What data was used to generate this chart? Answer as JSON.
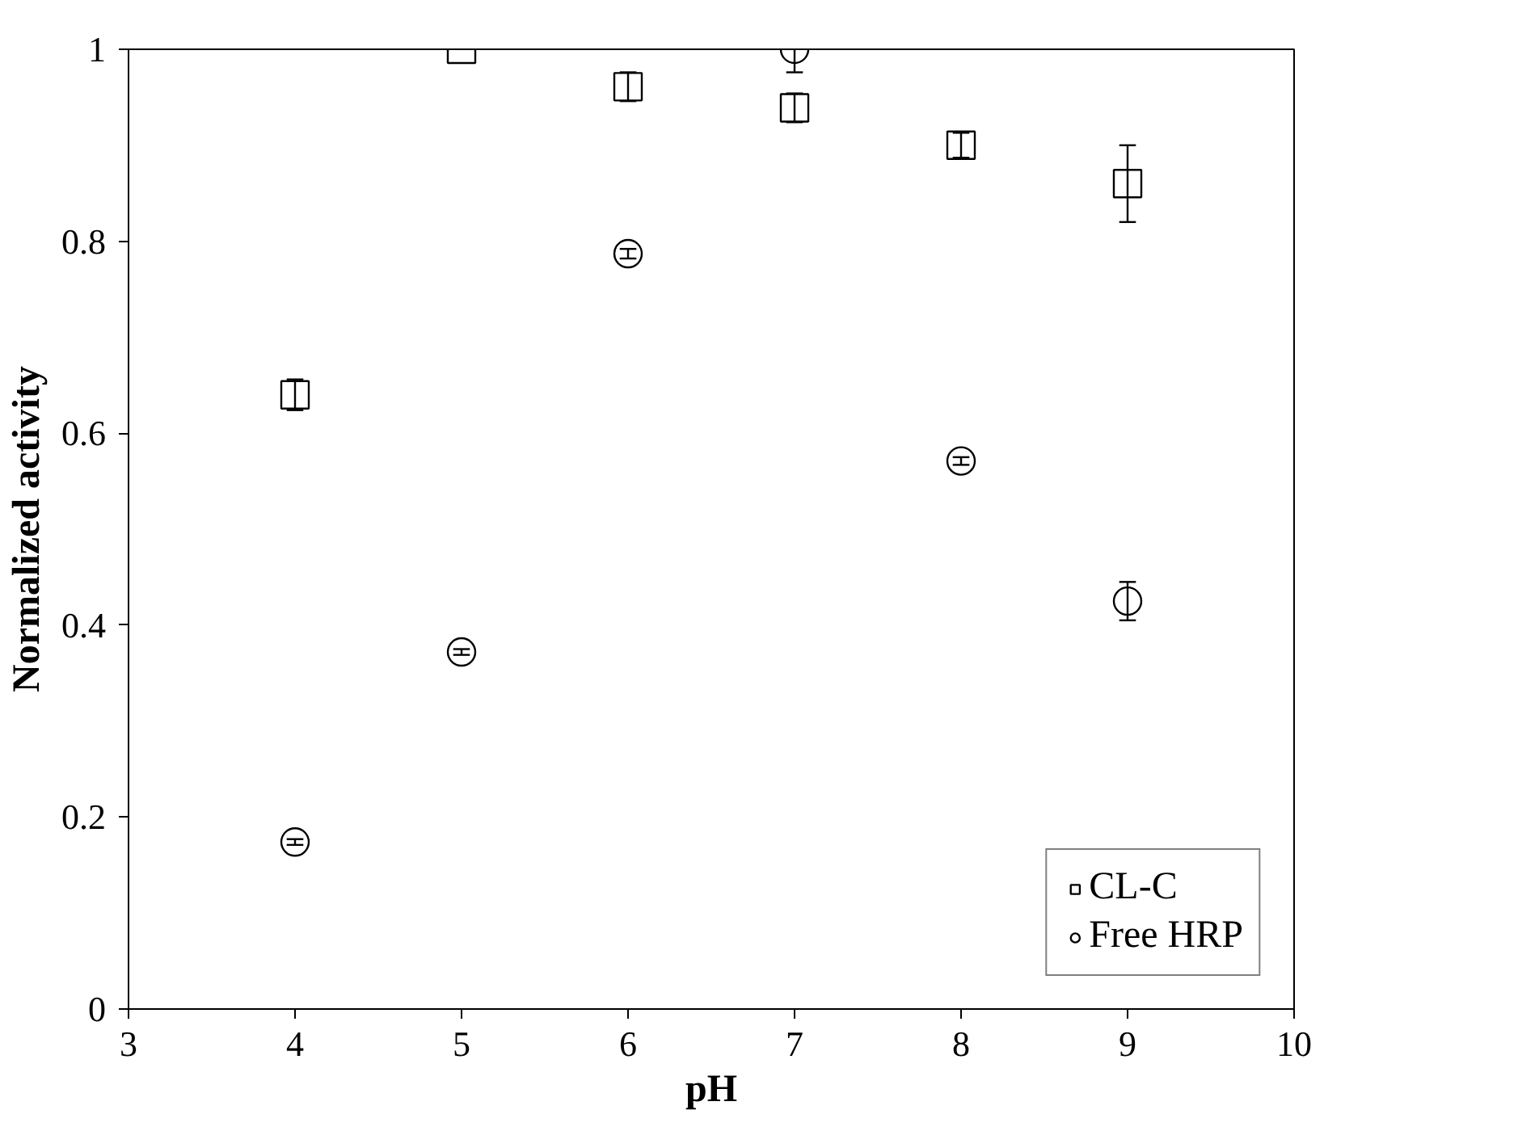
{
  "chart_data": {
    "type": "scatter",
    "xlabel": "pH",
    "ylabel": "Normalized activity",
    "x": [
      4,
      5,
      6,
      7,
      8,
      9
    ],
    "series": [
      {
        "name": "CL-C",
        "color": "#000000",
        "marker": "square",
        "values": [
          0.64,
          1.0,
          0.961,
          0.939,
          0.9,
          0.86
        ],
        "errors": [
          0.016,
          null,
          0.015,
          0.015,
          0.013,
          0.04
        ]
      },
      {
        "name": "Free HRP",
        "color": "#000000",
        "marker": "circle",
        "values": [
          0.174,
          0.372,
          0.787,
          1.0,
          0.571,
          0.425
        ],
        "errors": [
          0.003,
          0.003,
          0.005,
          0.024,
          0.004,
          0.02
        ]
      }
    ],
    "xlim": [
      3,
      10
    ],
    "ylim": [
      0,
      1
    ],
    "xticks": [
      3,
      4,
      5,
      6,
      7,
      8,
      9,
      10
    ],
    "yticks": [
      {
        "value": 0,
        "label": "0"
      },
      {
        "value": 0.2,
        "label": "0.2"
      },
      {
        "value": 0.4,
        "label": "0.4"
      },
      {
        "value": 0.6,
        "label": "0.6"
      },
      {
        "value": 0.8,
        "label": "0.8"
      },
      {
        "value": 1,
        "label": "1"
      }
    ],
    "grid": false,
    "legend": "bottom right"
  }
}
